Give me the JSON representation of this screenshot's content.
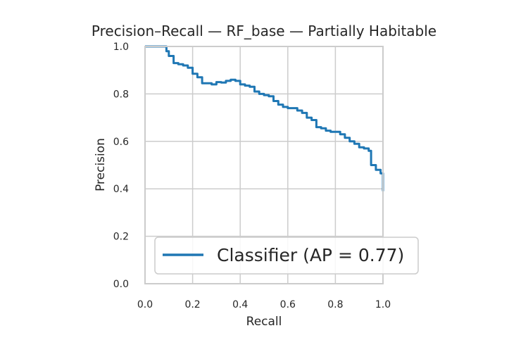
{
  "chart_data": {
    "type": "line",
    "title": "Precision–Recall — RF_base — Partially Habitable",
    "xlabel": "Recall",
    "ylabel": "Precision",
    "xlim": [
      0.0,
      1.0
    ],
    "ylim": [
      0.0,
      1.0
    ],
    "x_ticks": [
      "0.0",
      "0.2",
      "0.4",
      "0.6",
      "0.8",
      "1.0"
    ],
    "y_ticks": [
      "0.0",
      "0.2",
      "0.4",
      "0.6",
      "0.8",
      "1.0"
    ],
    "grid": true,
    "legend_position": "lower right",
    "series": [
      {
        "name": "Classifier (AP = 0.77)",
        "color": "#1f77b4",
        "points": [
          [
            0.0,
            1.0
          ],
          [
            0.09,
            1.0
          ],
          [
            0.09,
            0.98
          ],
          [
            0.1,
            0.96
          ],
          [
            0.12,
            0.93
          ],
          [
            0.14,
            0.925
          ],
          [
            0.16,
            0.92
          ],
          [
            0.18,
            0.91
          ],
          [
            0.2,
            0.885
          ],
          [
            0.22,
            0.87
          ],
          [
            0.24,
            0.845
          ],
          [
            0.26,
            0.845
          ],
          [
            0.28,
            0.84
          ],
          [
            0.3,
            0.85
          ],
          [
            0.32,
            0.848
          ],
          [
            0.34,
            0.855
          ],
          [
            0.36,
            0.86
          ],
          [
            0.38,
            0.855
          ],
          [
            0.4,
            0.84
          ],
          [
            0.42,
            0.835
          ],
          [
            0.44,
            0.83
          ],
          [
            0.46,
            0.81
          ],
          [
            0.48,
            0.8
          ],
          [
            0.5,
            0.795
          ],
          [
            0.52,
            0.79
          ],
          [
            0.54,
            0.77
          ],
          [
            0.56,
            0.755
          ],
          [
            0.58,
            0.745
          ],
          [
            0.6,
            0.74
          ],
          [
            0.62,
            0.74
          ],
          [
            0.64,
            0.73
          ],
          [
            0.66,
            0.72
          ],
          [
            0.68,
            0.7
          ],
          [
            0.7,
            0.69
          ],
          [
            0.72,
            0.66
          ],
          [
            0.74,
            0.655
          ],
          [
            0.76,
            0.645
          ],
          [
            0.78,
            0.64
          ],
          [
            0.8,
            0.64
          ],
          [
            0.82,
            0.63
          ],
          [
            0.84,
            0.615
          ],
          [
            0.86,
            0.6
          ],
          [
            0.88,
            0.59
          ],
          [
            0.9,
            0.575
          ],
          [
            0.92,
            0.57
          ],
          [
            0.94,
            0.56
          ],
          [
            0.95,
            0.5
          ],
          [
            0.97,
            0.48
          ],
          [
            0.99,
            0.465
          ],
          [
            1.0,
            0.46
          ],
          [
            1.0,
            0.39
          ]
        ]
      }
    ]
  }
}
